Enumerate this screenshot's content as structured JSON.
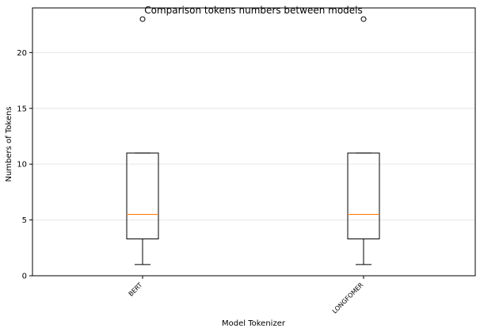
{
  "chart_data": {
    "type": "box",
    "title": "Comparison tokens numbers between models",
    "xlabel": "Model Tokenizer",
    "ylabel": "Numbers of Tokens",
    "ylim": [
      0,
      24
    ],
    "yticks": [
      0,
      5,
      10,
      15,
      20
    ],
    "grid": "horizontal",
    "colors": {
      "median": "#ff7f0e",
      "box": "#000000",
      "grid": "#e6e6e6"
    },
    "categories": [
      "BERT",
      "LONGFOMER"
    ],
    "boxes": [
      {
        "label": "BERT",
        "whisker_low": 1,
        "q1": 3.3,
        "median": 5.5,
        "q3": 11,
        "whisker_high": 11,
        "outliers": [
          23
        ]
      },
      {
        "label": "LONGFOMER",
        "whisker_low": 1,
        "q1": 3.3,
        "median": 5.5,
        "q3": 11,
        "whisker_high": 11,
        "outliers": [
          23
        ]
      }
    ]
  }
}
